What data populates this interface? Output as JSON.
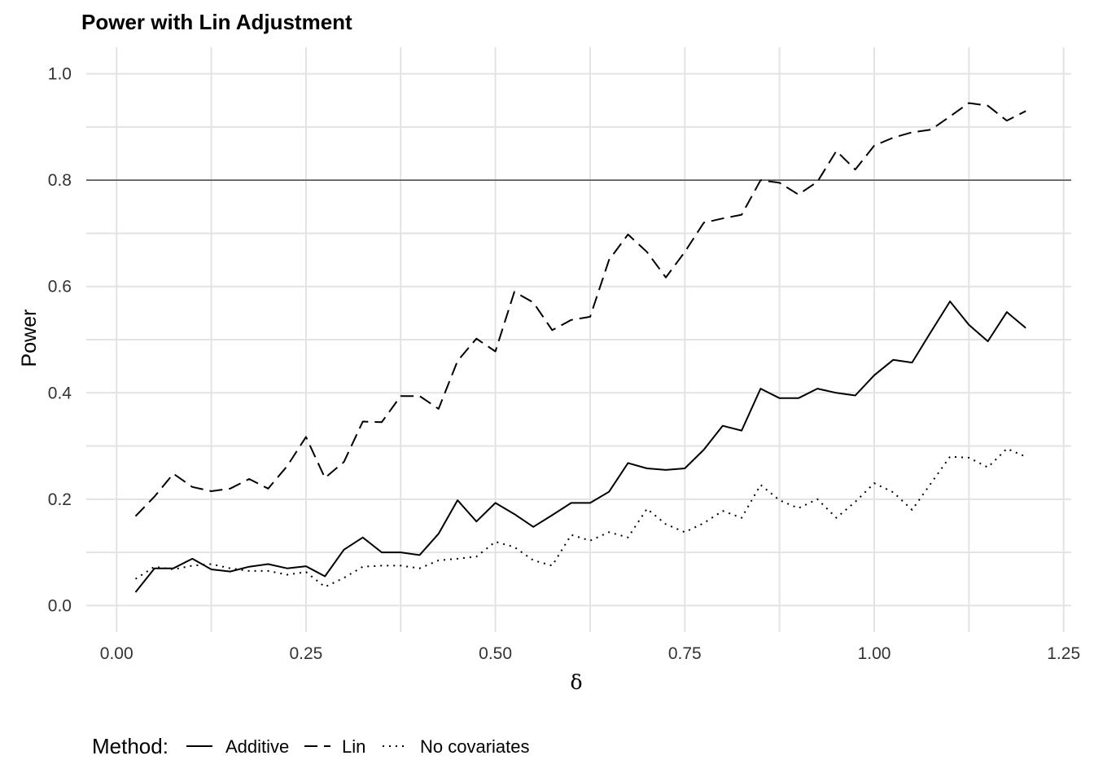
{
  "chart_data": {
    "type": "line",
    "title": "Power with Lin Adjustment",
    "xlabel": "δ",
    "ylabel": "Power",
    "xlim": [
      -0.04,
      1.26
    ],
    "ylim": [
      -0.05,
      1.05
    ],
    "xticks": [
      "0.00",
      "0.25",
      "0.50",
      "0.75",
      "1.00",
      "1.25"
    ],
    "yticks": [
      "0.0",
      "0.2",
      "0.4",
      "0.6",
      "0.8",
      "1.0"
    ],
    "grid": true,
    "reference_line": {
      "y": 0.8
    },
    "legend": {
      "title": "Method:",
      "position": "bottom",
      "entries": [
        "Additive",
        "Lin",
        "No covariates"
      ]
    },
    "x": [
      0.025,
      0.05,
      0.075,
      0.1,
      0.125,
      0.15,
      0.175,
      0.2,
      0.225,
      0.25,
      0.275,
      0.3,
      0.325,
      0.35,
      0.375,
      0.4,
      0.425,
      0.45,
      0.475,
      0.5,
      0.525,
      0.55,
      0.575,
      0.6,
      0.625,
      0.65,
      0.675,
      0.7,
      0.725,
      0.75,
      0.775,
      0.8,
      0.825,
      0.85,
      0.875,
      0.9,
      0.925,
      0.95,
      0.975,
      1.0,
      1.025,
      1.05,
      1.075,
      1.1,
      1.125,
      1.15,
      1.175,
      1.2
    ],
    "series": [
      {
        "name": "Additive",
        "dash": "solid",
        "values": [
          0.025,
          0.07,
          0.07,
          0.088,
          0.068,
          0.064,
          0.073,
          0.078,
          0.07,
          0.074,
          0.055,
          0.105,
          0.128,
          0.1,
          0.1,
          0.095,
          0.135,
          0.198,
          0.158,
          0.193,
          0.172,
          0.148,
          0.17,
          0.193,
          0.193,
          0.214,
          0.268,
          0.258,
          0.255,
          0.258,
          0.293,
          0.338,
          0.329,
          0.408,
          0.39,
          0.39,
          0.408,
          0.4,
          0.395,
          0.433,
          0.462,
          0.457,
          0.515,
          0.572,
          0.528,
          0.497,
          0.552,
          0.522
        ]
      },
      {
        "name": "Lin",
        "dash": "dashed",
        "values": [
          0.168,
          0.205,
          0.248,
          0.223,
          0.215,
          0.22,
          0.238,
          0.22,
          0.262,
          0.317,
          0.24,
          0.27,
          0.346,
          0.345,
          0.394,
          0.394,
          0.37,
          0.46,
          0.502,
          0.478,
          0.59,
          0.57,
          0.518,
          0.537,
          0.543,
          0.65,
          0.698,
          0.665,
          0.617,
          0.665,
          0.72,
          0.728,
          0.735,
          0.8,
          0.795,
          0.773,
          0.797,
          0.855,
          0.82,
          0.865,
          0.88,
          0.89,
          0.895,
          0.92,
          0.945,
          0.94,
          0.912,
          0.93
        ]
      },
      {
        "name": "No covariates",
        "dash": "dotted",
        "values": [
          0.05,
          0.073,
          0.068,
          0.075,
          0.078,
          0.07,
          0.065,
          0.065,
          0.058,
          0.063,
          0.035,
          0.052,
          0.073,
          0.075,
          0.075,
          0.07,
          0.085,
          0.088,
          0.092,
          0.12,
          0.11,
          0.085,
          0.075,
          0.133,
          0.122,
          0.138,
          0.128,
          0.182,
          0.153,
          0.138,
          0.155,
          0.178,
          0.165,
          0.227,
          0.198,
          0.183,
          0.2,
          0.165,
          0.195,
          0.23,
          0.213,
          0.18,
          0.23,
          0.28,
          0.278,
          0.26,
          0.295,
          0.28
        ]
      }
    ]
  }
}
